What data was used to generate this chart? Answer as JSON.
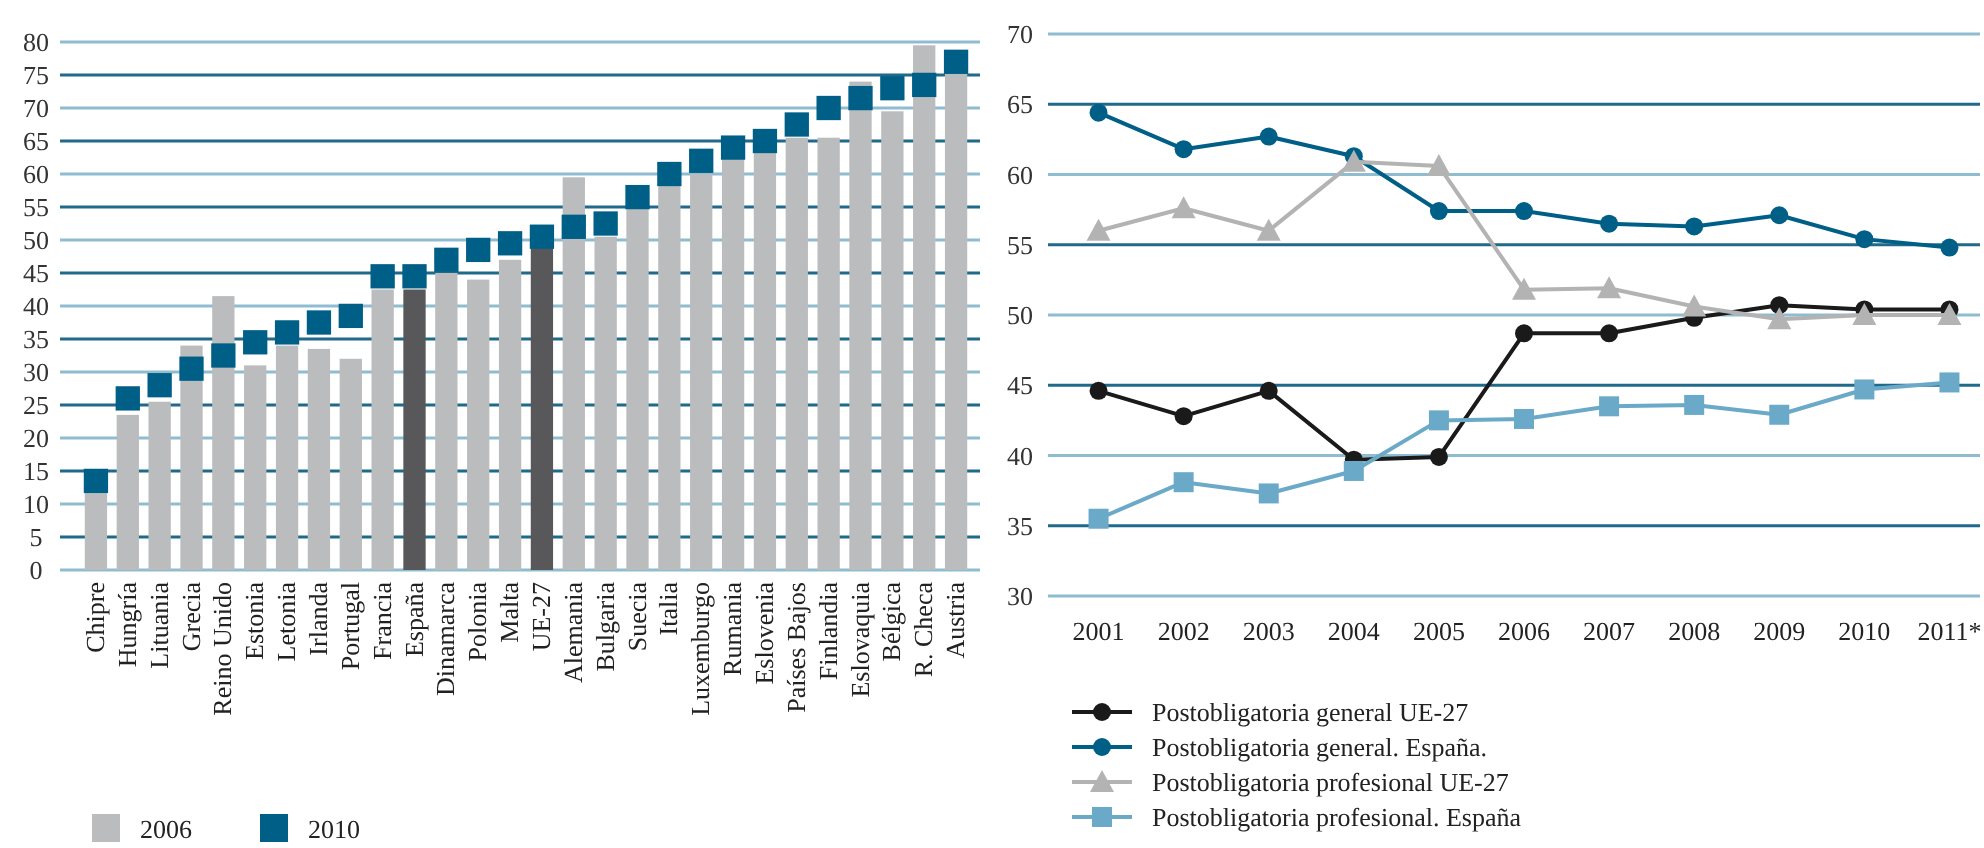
{
  "chart_data": [
    {
      "type": "bar",
      "categories": [
        "Chipre",
        "Hungría",
        "Lituania",
        "Grecia",
        "Reino Unido",
        "Estonia",
        "Letonia",
        "Irlanda",
        "Portugal",
        "Francia",
        "España",
        "Dinamarca",
        "Polonia",
        "Malta",
        "UE-27",
        "Alemania",
        "Bulgaria",
        "Suecia",
        "Italia",
        "Luxemburgo",
        "Rumania",
        "Eslovenia",
        "Países Bajos",
        "Finlandia",
        "Eslovaquia",
        "Bélgica",
        "R. Checa",
        "Austria"
      ],
      "series": [
        {
          "name": "2006",
          "color": "#bbbcbe",
          "colors": [
            "#bbbcbe",
            "#bbbcbe",
            "#bbbcbe",
            "#bbbcbe",
            "#bbbcbe",
            "#bbbcbe",
            "#bbbcbe",
            "#bbbcbe",
            "#bbbcbe",
            "#bbbcbe",
            "#58585a",
            "#bbbcbe",
            "#bbbcbe",
            "#bbbcbe",
            "#58585a",
            "#bbbcbe",
            "#bbbcbe",
            "#bbbcbe",
            "#bbbcbe",
            "#bbbcbe",
            "#bbbcbe",
            "#bbbcbe",
            "#bbbcbe",
            "#bbbcbe",
            "#bbbcbe",
            "#bbbcbe",
            "#bbbcbe",
            "#bbbcbe"
          ],
          "values": [
            12,
            23.5,
            25.5,
            34,
            41.5,
            31,
            34,
            33.5,
            32,
            42.5,
            42.5,
            45,
            44,
            47,
            49,
            59.5,
            50.5,
            55,
            58.5,
            60,
            62.5,
            63.5,
            65.5,
            65.5,
            74,
            69.5,
            79.5,
            75.5
          ]
        },
        {
          "name": "2010",
          "type": "scatter",
          "marker": "square",
          "color": "#005f87",
          "values": [
            13.5,
            26,
            28,
            30.5,
            32.5,
            34.5,
            36,
            37.5,
            38.5,
            44.5,
            44.5,
            47,
            48.5,
            49.5,
            50.5,
            52,
            52.5,
            56.5,
            60,
            62,
            64,
            65,
            67.5,
            70,
            71.5,
            73,
            73.5,
            77
          ]
        }
      ],
      "ylim": [
        0,
        80
      ],
      "yticks": [
        0,
        5,
        10,
        15,
        20,
        25,
        30,
        35,
        40,
        45,
        50,
        55,
        60,
        65,
        70,
        75,
        80
      ],
      "grid": "y",
      "legend": "bottom left"
    },
    {
      "type": "line",
      "categories": [
        "2001",
        "2002",
        "2003",
        "2004",
        "2005",
        "2006",
        "2007",
        "2008",
        "2009",
        "2010",
        "2011*"
      ],
      "series": [
        {
          "name": "Postobligatoria general UE-27",
          "color": "#1a1a1a",
          "marker": "circle",
          "values": [
            44.6,
            42.8,
            44.6,
            39.7,
            39.9,
            48.7,
            48.7,
            49.8,
            50.7,
            50.4,
            50.4
          ]
        },
        {
          "name": "Postobligatoria general. España.",
          "color": "#005f87",
          "marker": "circle",
          "values": [
            64.4,
            61.8,
            62.7,
            61.3,
            57.4,
            57.4,
            56.5,
            56.3,
            57.1,
            55.4,
            54.8
          ]
        },
        {
          "name": "Postobligatoria profesional UE-27",
          "color": "#b3b3b3",
          "marker": "triangle",
          "values": [
            56,
            57.6,
            56,
            60.9,
            60.6,
            51.8,
            51.9,
            50.6,
            49.7,
            50,
            50
          ]
        },
        {
          "name": "Postobligatoria profesional. España",
          "color": "#6aaac8",
          "marker": "square",
          "values": [
            35.5,
            38.1,
            37.3,
            38.9,
            42.5,
            42.6,
            43.5,
            43.6,
            42.9,
            44.7,
            45.2
          ]
        }
      ],
      "ylim": [
        30,
        70
      ],
      "yticks": [
        30,
        35,
        40,
        45,
        50,
        55,
        60,
        65,
        70
      ],
      "grid": "y",
      "legend": "bottom",
      "line_style": "solid"
    }
  ]
}
